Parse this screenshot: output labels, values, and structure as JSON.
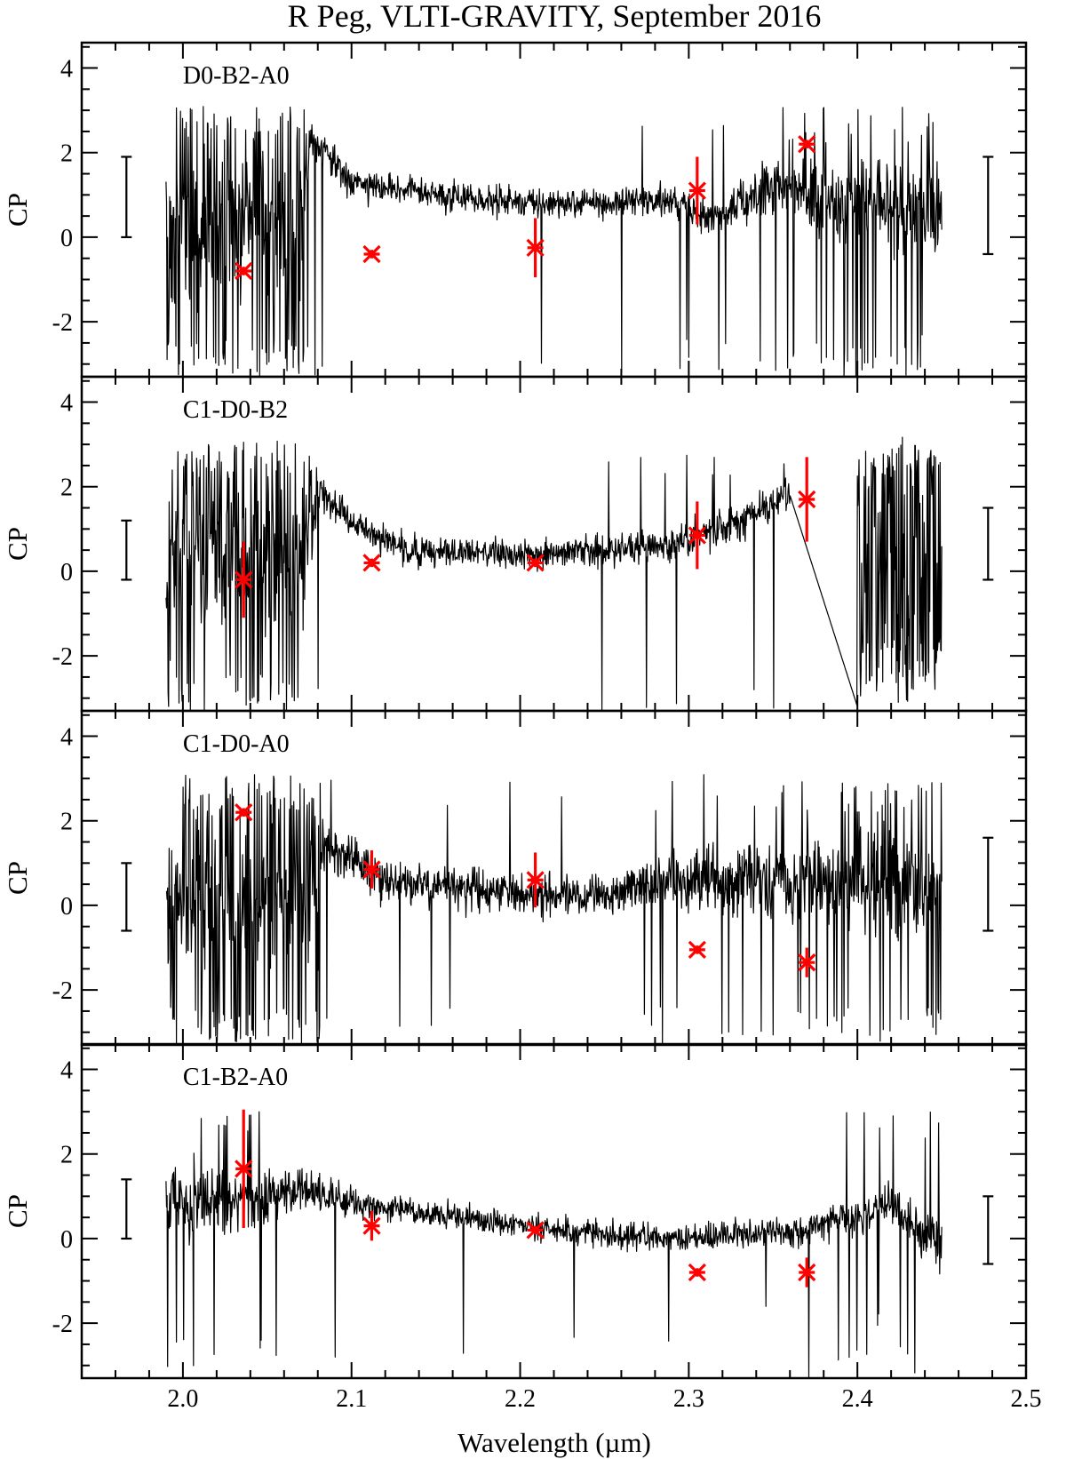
{
  "chart_data": {
    "type": "line",
    "title": "R Peg, VLTI-GRAVITY, September 2016",
    "xlabel": "Wavelength (µm)",
    "xlim": [
      1.94,
      2.5
    ],
    "x_ticks": [
      "2.0",
      "2.1",
      "2.2",
      "2.3",
      "2.4",
      "2.5"
    ],
    "y_ticks": [
      "4",
      "2",
      "0",
      "-2"
    ],
    "grid": false,
    "panels": [
      {
        "label": "D0-B2-A0",
        "ylabel": "CP",
        "ylim": [
          -3.3,
          4.6
        ],
        "spectrum_range": [
          1.99,
          2.45
        ],
        "left_errorbar": [
          0.0,
          1.9
        ],
        "right_errorbar": [
          -0.4,
          1.9
        ],
        "markers": [
          {
            "x": 2.036,
            "y": -0.8,
            "err": 0.1
          },
          {
            "x": 2.112,
            "y": -0.4,
            "err": 0.1
          },
          {
            "x": 2.209,
            "y": -0.25,
            "err": 0.7
          },
          {
            "x": 2.305,
            "y": 1.1,
            "err": 0.8
          },
          {
            "x": 2.37,
            "y": 2.2,
            "err": 0.1
          }
        ]
      },
      {
        "label": "C1-D0-B2",
        "ylabel": "CP",
        "ylim": [
          -3.3,
          4.6
        ],
        "spectrum_range": [
          1.99,
          2.45
        ],
        "left_errorbar": [
          -0.2,
          1.2
        ],
        "right_errorbar": [
          -0.2,
          1.5
        ],
        "markers": [
          {
            "x": 2.036,
            "y": -0.2,
            "err": 0.9
          },
          {
            "x": 2.112,
            "y": 0.2,
            "err": 0.1
          },
          {
            "x": 2.209,
            "y": 0.2,
            "err": 0.1
          },
          {
            "x": 2.305,
            "y": 0.85,
            "err": 0.8
          },
          {
            "x": 2.37,
            "y": 1.7,
            "err": 1.0
          }
        ]
      },
      {
        "label": "C1-D0-A0",
        "ylabel": "CP",
        "ylim": [
          -3.3,
          4.6
        ],
        "spectrum_range": [
          1.99,
          2.45
        ],
        "left_errorbar": [
          -0.6,
          1.0
        ],
        "right_errorbar": [
          -0.6,
          1.6
        ],
        "markers": [
          {
            "x": 2.036,
            "y": 2.2,
            "err": 0.1
          },
          {
            "x": 2.112,
            "y": 0.85,
            "err": 0.45
          },
          {
            "x": 2.209,
            "y": 0.6,
            "err": 0.65
          },
          {
            "x": 2.305,
            "y": -1.05,
            "err": 0.1
          },
          {
            "x": 2.37,
            "y": -1.35,
            "err": 0.35
          }
        ]
      },
      {
        "label": "C1-B2-A0",
        "ylabel": "CP",
        "ylim": [
          -3.3,
          4.6
        ],
        "spectrum_range": [
          1.99,
          2.45
        ],
        "left_errorbar": [
          0.0,
          1.4
        ],
        "right_errorbar": [
          -0.6,
          1.0
        ],
        "markers": [
          {
            "x": 2.036,
            "y": 1.65,
            "err": 1.4
          },
          {
            "x": 2.112,
            "y": 0.3,
            "err": 0.35
          },
          {
            "x": 2.209,
            "y": 0.2,
            "err": 0.1
          },
          {
            "x": 2.305,
            "y": -0.8,
            "err": 0.1
          },
          {
            "x": 2.37,
            "y": -0.8,
            "err": 0.35
          }
        ]
      }
    ]
  }
}
